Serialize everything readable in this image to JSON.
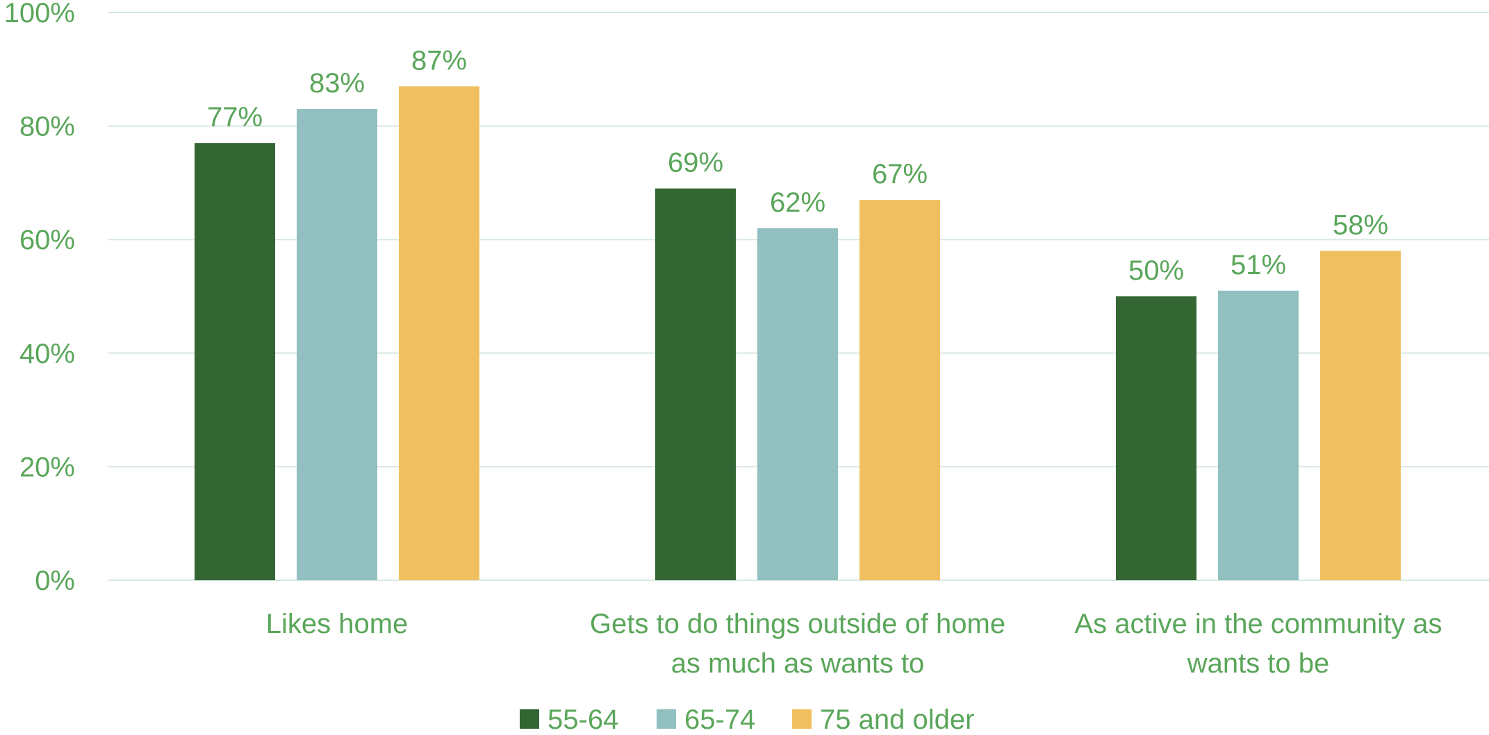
{
  "chart_data": {
    "type": "bar",
    "title": "",
    "xlabel": "",
    "ylabel": "",
    "ylim": [
      0,
      100
    ],
    "yticks": [
      "0%",
      "20%",
      "40%",
      "60%",
      "80%",
      "100%"
    ],
    "ytick_values": [
      0,
      20,
      40,
      60,
      80,
      100
    ],
    "categories": [
      [
        "Likes home"
      ],
      [
        "Gets to do things outside of home",
        "as much as wants to"
      ],
      [
        "As active in the community as",
        "wants to be"
      ]
    ],
    "series": [
      {
        "name": "55-64",
        "color": "#336633",
        "values": [
          77,
          69,
          50
        ],
        "labels": [
          "77%",
          "69%",
          "50%"
        ]
      },
      {
        "name": "65-74",
        "color": "#92bfbf",
        "values": [
          83,
          62,
          51
        ],
        "labels": [
          "83%",
          "62%",
          "51%"
        ]
      },
      {
        "name": "75 and older",
        "color": "#f0c060",
        "values": [
          87,
          67,
          58
        ],
        "labels": [
          "87%",
          "67%",
          "58%"
        ]
      }
    ],
    "grid": true,
    "legend_position": "bottom-center"
  }
}
